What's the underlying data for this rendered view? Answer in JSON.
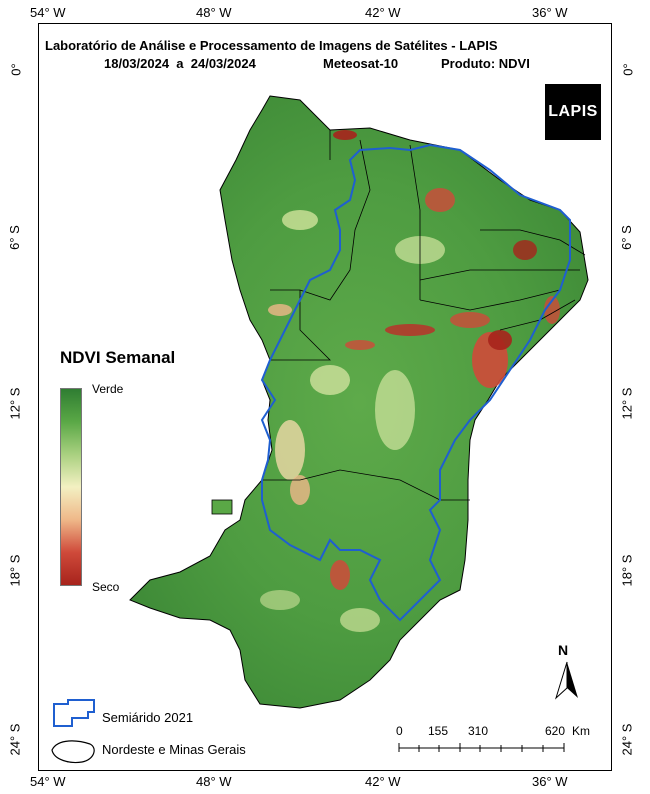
{
  "header": {
    "line1": "Laboratório de Análise e Processamento de Imagens de Satélites - LAPIS",
    "dates": "18/03/2024  a  24/03/2024",
    "satellite": "Meteosat-10",
    "product": "Produto: NDVI"
  },
  "logo_text": "LAPIS",
  "axes": {
    "longitudes": [
      "54° W",
      "48° W",
      "42° W",
      "36° W"
    ],
    "latitudes": [
      "0°",
      "6° S",
      "12° S",
      "18° S",
      "24° S"
    ]
  },
  "legend": {
    "title": "NDVI Semanal",
    "high_label": "Verde",
    "low_label": "Seco",
    "colors": [
      "#2f7d32",
      "#5aa846",
      "#a9d080",
      "#f3f0c2",
      "#efb889",
      "#cf4a3a",
      "#a7231c"
    ]
  },
  "key": {
    "semiarid": "Semiárido 2021",
    "region": "Nordeste e Minas Gerais"
  },
  "scale": {
    "ticks": [
      "0",
      "155",
      "310",
      "620"
    ],
    "unit": "Km"
  },
  "north_label": "N"
}
